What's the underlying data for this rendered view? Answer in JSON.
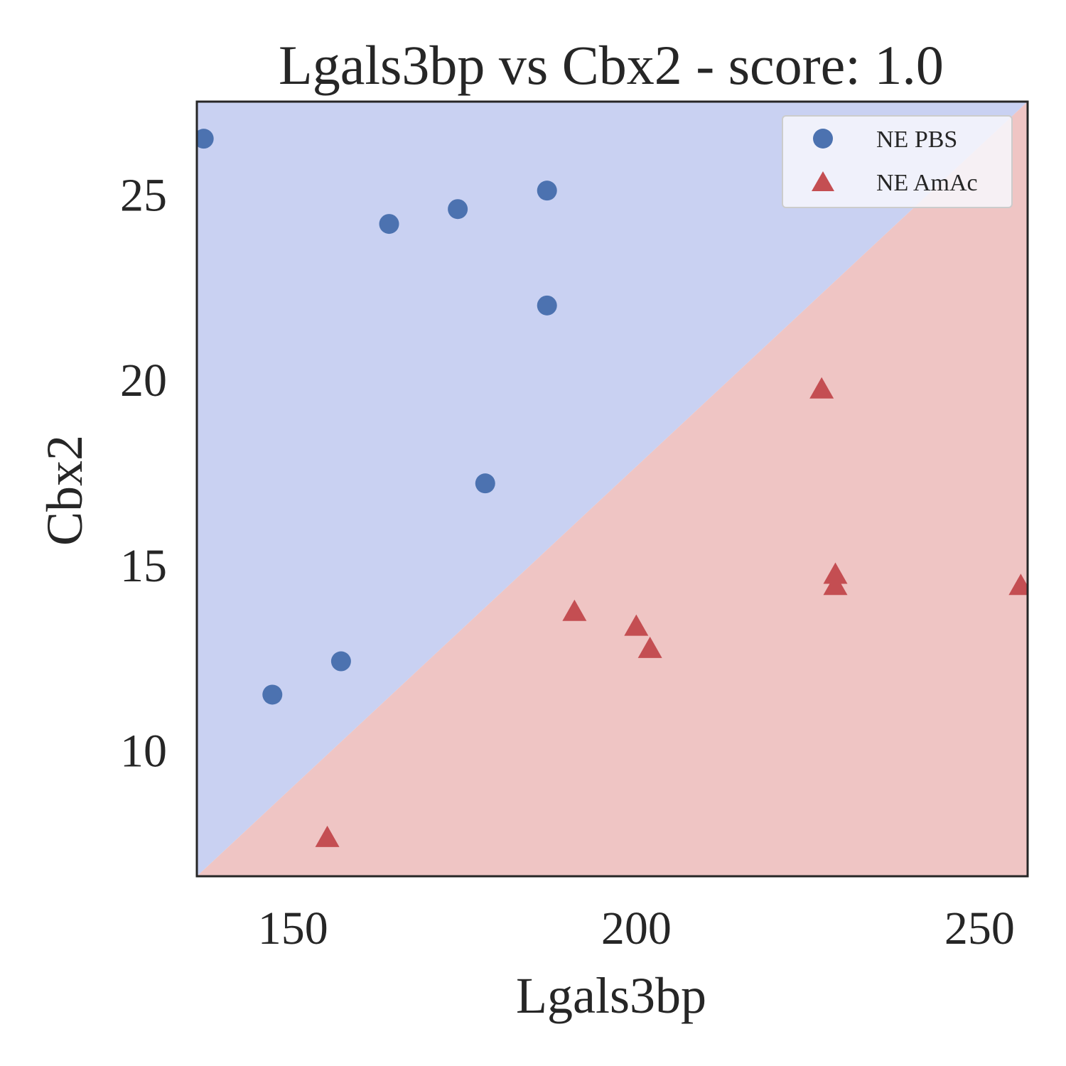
{
  "chart_data": {
    "type": "scatter",
    "title": "Lgals3bp vs Cbx2 - score: 1.0",
    "xlabel": "Lgals3bp",
    "ylabel": "Cbx2",
    "xlim": [
      136,
      257
    ],
    "ylim": [
      6.6,
      27.5
    ],
    "xticks": [
      150,
      200,
      250
    ],
    "yticks": [
      10,
      15,
      20,
      25
    ],
    "grid": false,
    "legend_position": "top-right",
    "decision_boundary": {
      "line": [
        [
          136,
          6.6
        ],
        [
          257,
          27.5
        ]
      ],
      "upper_region_color": "#c9d1f2",
      "lower_region_color": "#efc5c4"
    },
    "series": [
      {
        "name": "NE PBS",
        "marker": "circle",
        "color": "#4c72b0",
        "x": [
          137,
          147,
          157,
          164,
          174,
          178,
          187,
          187
        ],
        "y": [
          26.5,
          11.5,
          12.4,
          24.2,
          24.6,
          17.2,
          25.1,
          22.0
        ]
      },
      {
        "name": "NE AmAc",
        "marker": "triangle",
        "color": "#c44e52",
        "x": [
          155,
          191,
          200,
          202,
          227,
          229,
          229,
          256
        ],
        "y": [
          7.6,
          13.7,
          13.3,
          12.7,
          19.7,
          14.4,
          14.7,
          14.4
        ]
      }
    ]
  }
}
